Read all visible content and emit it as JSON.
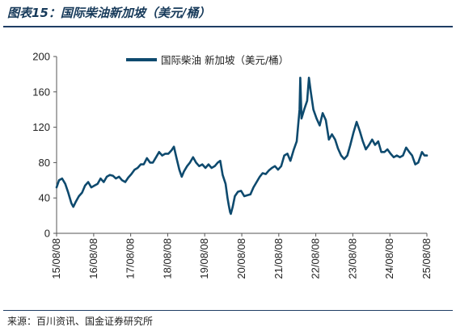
{
  "header": {
    "figure_title": "图表15：国际柴油新加坡（美元/桶）"
  },
  "footer": {
    "source": "来源：百川资讯、国金证券研究所"
  },
  "chart_data": {
    "type": "line",
    "series": [
      {
        "name": "国际柴油 新加坡（美元/桶）",
        "color": "#0e4a6e",
        "points": [
          [
            "2015-08-08",
            52
          ],
          [
            "2015-09-01",
            60
          ],
          [
            "2015-10-01",
            62
          ],
          [
            "2015-11-01",
            56
          ],
          [
            "2015-12-01",
            46
          ],
          [
            "2016-01-01",
            34
          ],
          [
            "2016-01-20",
            30
          ],
          [
            "2016-02-15",
            36
          ],
          [
            "2016-03-15",
            42
          ],
          [
            "2016-04-15",
            46
          ],
          [
            "2016-05-15",
            54
          ],
          [
            "2016-06-15",
            58
          ],
          [
            "2016-07-15",
            52
          ],
          [
            "2016-08-15",
            54
          ],
          [
            "2016-09-15",
            56
          ],
          [
            "2016-10-15",
            62
          ],
          [
            "2016-11-15",
            58
          ],
          [
            "2016-12-15",
            64
          ],
          [
            "2017-01-15",
            66
          ],
          [
            "2017-02-15",
            65
          ],
          [
            "2017-03-15",
            62
          ],
          [
            "2017-04-15",
            64
          ],
          [
            "2017-05-15",
            60
          ],
          [
            "2017-06-15",
            58
          ],
          [
            "2017-07-15",
            63
          ],
          [
            "2017-08-15",
            67
          ],
          [
            "2017-09-15",
            72
          ],
          [
            "2017-10-15",
            74
          ],
          [
            "2017-11-15",
            78
          ],
          [
            "2017-12-15",
            78
          ],
          [
            "2018-01-15",
            85
          ],
          [
            "2018-02-15",
            80
          ],
          [
            "2018-03-15",
            80
          ],
          [
            "2018-04-15",
            86
          ],
          [
            "2018-05-15",
            92
          ],
          [
            "2018-06-15",
            88
          ],
          [
            "2018-07-15",
            90
          ],
          [
            "2018-08-15",
            90
          ],
          [
            "2018-09-15",
            94
          ],
          [
            "2018-10-08",
            98
          ],
          [
            "2018-11-01",
            86
          ],
          [
            "2018-12-01",
            72
          ],
          [
            "2018-12-25",
            64
          ],
          [
            "2019-01-15",
            70
          ],
          [
            "2019-02-15",
            76
          ],
          [
            "2019-03-15",
            80
          ],
          [
            "2019-04-15",
            86
          ],
          [
            "2019-05-15",
            80
          ],
          [
            "2019-06-15",
            76
          ],
          [
            "2019-07-15",
            78
          ],
          [
            "2019-08-15",
            74
          ],
          [
            "2019-09-15",
            78
          ],
          [
            "2019-10-15",
            74
          ],
          [
            "2019-11-15",
            76
          ],
          [
            "2019-12-15",
            80
          ],
          [
            "2020-01-08",
            82
          ],
          [
            "2020-02-01",
            66
          ],
          [
            "2020-03-01",
            56
          ],
          [
            "2020-03-20",
            40
          ],
          [
            "2020-04-01",
            32
          ],
          [
            "2020-04-15",
            24
          ],
          [
            "2020-04-22",
            22
          ],
          [
            "2020-05-10",
            30
          ],
          [
            "2020-06-01",
            42
          ],
          [
            "2020-07-01",
            47
          ],
          [
            "2020-08-01",
            48
          ],
          [
            "2020-09-01",
            42
          ],
          [
            "2020-10-01",
            43
          ],
          [
            "2020-11-01",
            44
          ],
          [
            "2020-12-01",
            52
          ],
          [
            "2021-01-01",
            58
          ],
          [
            "2021-02-01",
            64
          ],
          [
            "2021-03-01",
            68
          ],
          [
            "2021-04-01",
            67
          ],
          [
            "2021-05-01",
            71
          ],
          [
            "2021-06-01",
            74
          ],
          [
            "2021-07-01",
            76
          ],
          [
            "2021-08-01",
            72
          ],
          [
            "2021-09-01",
            76
          ],
          [
            "2021-10-01",
            88
          ],
          [
            "2021-11-01",
            90
          ],
          [
            "2021-12-01",
            82
          ],
          [
            "2022-01-01",
            94
          ],
          [
            "2022-02-01",
            104
          ],
          [
            "2022-03-01",
            140
          ],
          [
            "2022-03-08",
            176
          ],
          [
            "2022-03-20",
            130
          ],
          [
            "2022-04-15",
            140
          ],
          [
            "2022-05-15",
            150
          ],
          [
            "2022-06-01",
            176
          ],
          [
            "2022-06-20",
            160
          ],
          [
            "2022-07-15",
            140
          ],
          [
            "2022-08-15",
            130
          ],
          [
            "2022-09-15",
            122
          ],
          [
            "2022-10-15",
            136
          ],
          [
            "2022-11-15",
            128
          ],
          [
            "2022-12-15",
            106
          ],
          [
            "2023-01-15",
            112
          ],
          [
            "2023-02-15",
            106
          ],
          [
            "2023-03-15",
            96
          ],
          [
            "2023-04-15",
            88
          ],
          [
            "2023-05-15",
            84
          ],
          [
            "2023-06-15",
            88
          ],
          [
            "2023-07-15",
            100
          ],
          [
            "2023-08-15",
            114
          ],
          [
            "2023-09-15",
            126
          ],
          [
            "2023-10-15",
            116
          ],
          [
            "2023-11-15",
            104
          ],
          [
            "2023-12-15",
            95
          ],
          [
            "2024-01-15",
            100
          ],
          [
            "2024-02-15",
            106
          ],
          [
            "2024-03-15",
            100
          ],
          [
            "2024-04-15",
            104
          ],
          [
            "2024-05-15",
            92
          ],
          [
            "2024-06-15",
            92
          ],
          [
            "2024-07-15",
            95
          ],
          [
            "2024-08-15",
            90
          ],
          [
            "2024-09-15",
            86
          ],
          [
            "2024-10-15",
            88
          ],
          [
            "2024-11-15",
            86
          ],
          [
            "2024-12-15",
            88
          ],
          [
            "2025-01-15",
            97
          ],
          [
            "2025-02-15",
            92
          ],
          [
            "2025-03-15",
            88
          ],
          [
            "2025-04-15",
            78
          ],
          [
            "2025-05-15",
            80
          ],
          [
            "2025-06-20",
            92
          ],
          [
            "2025-07-15",
            88
          ],
          [
            "2025-08-08",
            88
          ]
        ]
      }
    ],
    "x_ticks": [
      "15/08/08",
      "16/08/08",
      "17/08/08",
      "18/08/08",
      "19/08/08",
      "20/08/08",
      "21/08/08",
      "22/08/08",
      "23/08/08",
      "24/08/08",
      "25/08/08"
    ],
    "x_tick_dates": [
      "2015-08-08",
      "2016-08-08",
      "2017-08-08",
      "2018-08-08",
      "2019-08-08",
      "2020-08-08",
      "2021-08-08",
      "2022-08-08",
      "2023-08-08",
      "2024-08-08",
      "2025-08-08"
    ],
    "y_ticks": [
      0,
      40,
      80,
      120,
      160,
      200
    ],
    "ylim": [
      0,
      200
    ],
    "xlabel": "",
    "ylabel": "",
    "title": "",
    "legend_position": "top",
    "grid": false
  }
}
